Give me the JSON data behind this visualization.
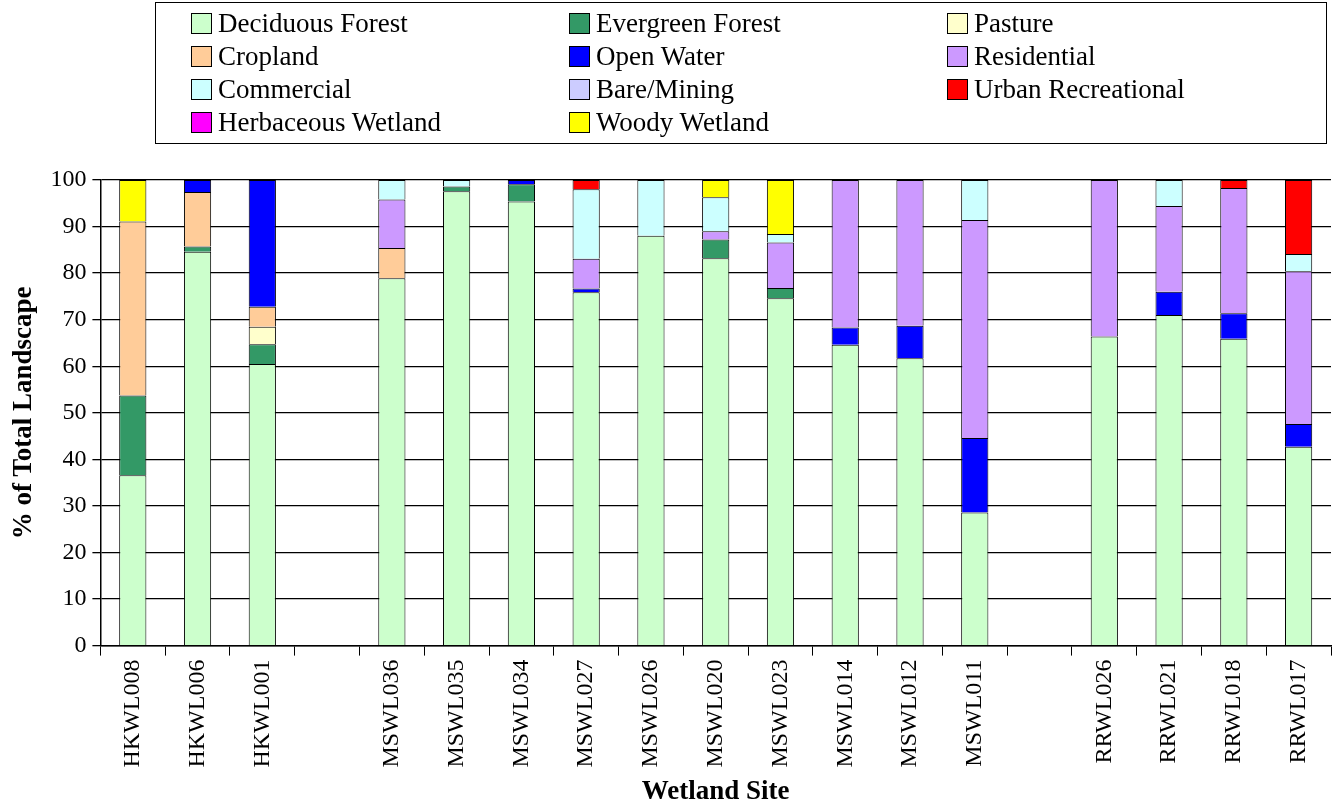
{
  "chart_data": {
    "type": "bar",
    "stacked": true,
    "xlabel": "Wetland Site",
    "ylabel": "% of Total Landscape",
    "ylim": [
      0,
      100
    ],
    "yticks": [
      0,
      10,
      20,
      30,
      40,
      50,
      60,
      70,
      80,
      90,
      100
    ],
    "grid": "y",
    "legend": "top",
    "categories": [
      "HKWL008",
      "HKWL006",
      "HKWL001",
      null,
      "MSWL036",
      "MSWL035",
      "MSWL034",
      "MSWL027",
      "MSWL026",
      "MSWL020",
      "MSWL023",
      "MSWL014",
      "MSWL012",
      "MSWL011",
      null,
      "RRWL026",
      "RRWL021",
      "RRWL018",
      "RRWL017"
    ],
    "series": [
      {
        "name": "Deciduous Forest",
        "color": "#ccffcc",
        "values": [
          36.6,
          84.6,
          60.5,
          null,
          78.9,
          97.6,
          95.4,
          75.9,
          88.0,
          83.2,
          74.6,
          64.6,
          61.7,
          28.6,
          null,
          66.4,
          71.0,
          65.9,
          42.7
        ]
      },
      {
        "name": "Evergreen Forest",
        "color": "#339966",
        "values": [
          17.1,
          1.1,
          4.2,
          null,
          0,
          1.0,
          3.7,
          0,
          0,
          4.0,
          2.2,
          0,
          0,
          0,
          null,
          0,
          0,
          0,
          0
        ]
      },
      {
        "name": "Pasture",
        "color": "#ffffcc",
        "values": [
          0,
          0,
          3.8,
          null,
          0,
          0,
          0,
          0,
          0,
          0,
          0,
          0,
          0,
          0,
          null,
          0,
          0,
          0,
          0
        ]
      },
      {
        "name": "Cropland",
        "color": "#ffcc99",
        "values": [
          37.4,
          11.7,
          4.3,
          null,
          6.5,
          0,
          0,
          0,
          0,
          0,
          0,
          0,
          0,
          0,
          null,
          0,
          0,
          0,
          0
        ]
      },
      {
        "name": "Open Water",
        "color": "#0000ff",
        "values": [
          0,
          2.6,
          27.2,
          null,
          0,
          0,
          0.9,
          0.8,
          0,
          0,
          0,
          3.7,
          7.0,
          16.0,
          null,
          0,
          5.0,
          5.5,
          4.9
        ]
      },
      {
        "name": "Residential",
        "color": "#cc99ff",
        "values": [
          0,
          0,
          0,
          null,
          10.4,
          0,
          0,
          6.4,
          0,
          1.8,
          9.8,
          31.7,
          31.3,
          46.8,
          null,
          33.6,
          18.4,
          26.9,
          32.8
        ]
      },
      {
        "name": "Commercial",
        "color": "#ccffff",
        "values": [
          0,
          0,
          0,
          null,
          4.2,
          1.4,
          0,
          14.9,
          12.0,
          7.3,
          1.8,
          0,
          0,
          8.6,
          null,
          0,
          5.6,
          0,
          3.7
        ]
      },
      {
        "name": "Bare/Mining",
        "color": "#ccccff",
        "values": [
          0,
          0,
          0,
          null,
          0,
          0,
          0,
          0,
          0,
          0,
          0,
          0,
          0,
          0,
          null,
          0,
          0,
          0,
          0
        ]
      },
      {
        "name": "Urban Recreational",
        "color": "#ff0000",
        "values": [
          0,
          0,
          0,
          null,
          0,
          0,
          0,
          2.0,
          0,
          0,
          0,
          0,
          0,
          0,
          null,
          0,
          0,
          1.7,
          15.9
        ]
      },
      {
        "name": "Herbaceous Wetland",
        "color": "#ff00ff",
        "values": [
          0,
          0,
          0,
          null,
          0,
          0,
          0,
          0,
          0,
          0,
          0,
          0,
          0,
          0,
          null,
          0,
          0,
          0,
          0
        ]
      },
      {
        "name": "Woody Wetland",
        "color": "#ffff00",
        "values": [
          8.9,
          0,
          0,
          null,
          0,
          0,
          0,
          0,
          0,
          3.7,
          11.6,
          0,
          0,
          0,
          null,
          0,
          0,
          0,
          0
        ]
      }
    ]
  }
}
